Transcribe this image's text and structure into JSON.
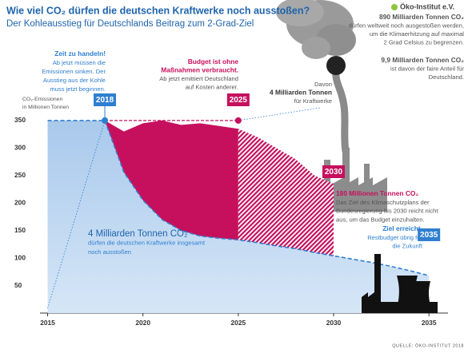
{
  "header": {
    "title": "Wie viel CO₂ dürfen die deutschen Kraftwerke noch ausstoßen?",
    "subtitle": "Der Kohleausstieg für Deutschlands Beitrag zum 2-Grad-Ziel",
    "logo": "Öko-Institut e.V."
  },
  "chart_data": {
    "type": "area",
    "y_label": [
      "CO₂-Emissionen",
      "in Millionen Tonnen"
    ],
    "x": [
      2015,
      2016,
      2017,
      2018,
      2019,
      2020,
      2021,
      2022,
      2023,
      2024,
      2025,
      2026,
      2027,
      2028,
      2029,
      2030,
      2031,
      2032,
      2033,
      2034,
      2035
    ],
    "series": [
      {
        "color": "#2f7fd0",
        "values": [
          350,
          350,
          350,
          350,
          256,
          205,
          170,
          150,
          140,
          136,
          133,
          128,
          122,
          117,
          110,
          104,
          98,
          92,
          85,
          77,
          68
        ]
      },
      {
        "color": "#c6105d",
        "values": [
          null,
          null,
          null,
          350,
          330,
          345,
          350,
          342,
          345,
          340,
          335,
          320,
          300,
          280,
          250,
          235,
          null,
          null,
          null,
          null,
          null
        ]
      }
    ],
    "xlim": [
      2014.6,
      2036
    ],
    "ylim": [
      0,
      360
    ],
    "xticks": [
      2015,
      2020,
      2025,
      2030,
      2035
    ],
    "yticks": [
      50,
      100,
      150,
      200,
      250,
      300,
      350
    ],
    "grid": false,
    "markers": [
      2018,
      2025,
      2030,
      2035
    ],
    "source": "QUELLE: ÖKO-INSTITUT 2018"
  },
  "annotations": {
    "global": {
      "heading": "890 Milliarden Tonnen CO₂",
      "lines": [
        "dürfen weltweit noch ausgestoßen werden,",
        "um die Klimaerhitzung auf maximal",
        "2 Grad Celsius zu begrenzen."
      ]
    },
    "germany": {
      "heading": "9,9 Milliarden Tonnen CO₂",
      "lines": [
        "ist davon der faire Anteil für",
        "Deutschland."
      ]
    },
    "act": {
      "heading": "Zeit zu handeln!",
      "lines": [
        "Ab jetzt müssen die",
        "Emissionen sinken. Der",
        "Ausstieg aus der Kohle",
        "muss jetzt beginnen."
      ]
    },
    "budget": {
      "heading": [
        "Budget ist ohne",
        "Maßnahmen verbraucht."
      ],
      "lines": [
        "Ab jetzt emittiert Deutschland",
        "auf Kosten anderer."
      ]
    },
    "plants": {
      "lines": [
        "Davon"
      ],
      "heading": "4 Milliarden Tonnen",
      "tail": "für Kraftwerke"
    },
    "target2030": {
      "heading": "180 Millionen Tonnen CO₂",
      "lines": [
        "Das Ziel des Klimaschutzplans der",
        "Bundesregierung bis 2030 reicht nicht",
        "aus, um das Budget einzuhalten."
      ]
    },
    "goal": {
      "heading": "Ziel erreicht.",
      "lines": [
        "Restbudget übrig für",
        "die Zukunft"
      ]
    },
    "total": {
      "heading": "4 Milliarden Tonnen CO₂",
      "lines": [
        "dürfen die deutschen Kraftwerke insgesamt",
        "noch ausstoßen"
      ]
    }
  }
}
